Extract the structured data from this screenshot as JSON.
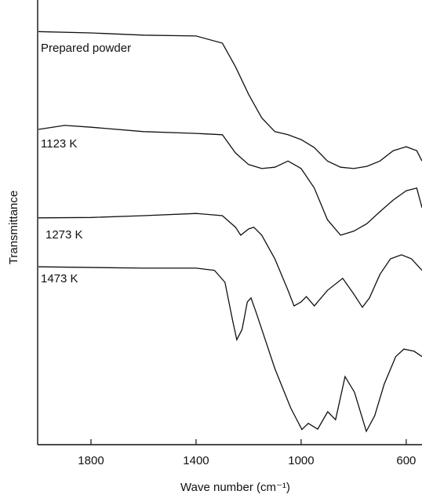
{
  "chart_data": {
    "type": "line",
    "xlabel": "Wave number (cm⁻¹)",
    "ylabel": "Transmittance",
    "xlim": [
      2000,
      540
    ],
    "xticks": [
      1800,
      1400,
      1000,
      600
    ],
    "ylim": [
      0,
      100
    ],
    "series": [
      {
        "name": "Prepared powder",
        "color": "#111111",
        "x": [
          2000,
          1800,
          1600,
          1400,
          1300,
          1250,
          1200,
          1150,
          1100,
          1050,
          1000,
          950,
          900,
          850,
          800,
          750,
          700,
          650,
          600,
          560,
          540
        ],
        "values": [
          92.9,
          92.6,
          92.1,
          91.9,
          90.3,
          85.0,
          78.8,
          73.5,
          70.4,
          69.7,
          68.6,
          66.8,
          63.8,
          62.4,
          62.1,
          62.6,
          63.8,
          66.1,
          67.0,
          66.1,
          63.8
        ]
      },
      {
        "name": "1123 K",
        "color": "#111111",
        "x": [
          2000,
          1900,
          1800,
          1600,
          1400,
          1300,
          1250,
          1200,
          1150,
          1100,
          1050,
          1000,
          950,
          900,
          850,
          800,
          750,
          700,
          650,
          600,
          560,
          540
        ],
        "values": [
          70.9,
          71.8,
          71.4,
          70.4,
          70.0,
          69.7,
          65.6,
          63.0,
          62.1,
          62.4,
          63.8,
          62.1,
          57.7,
          50.6,
          47.1,
          48.0,
          49.7,
          52.4,
          55.0,
          57.1,
          57.7,
          53.3
        ]
      },
      {
        "name": "1273 K",
        "color": "#111111",
        "x": [
          2000,
          1800,
          1600,
          1400,
          1300,
          1250,
          1230,
          1200,
          1180,
          1150,
          1100,
          1050,
          1027,
          1000,
          980,
          950,
          900,
          842,
          800,
          767,
          740,
          700,
          660,
          618,
          580,
          540
        ],
        "values": [
          51.0,
          51.1,
          51.5,
          52.0,
          51.5,
          48.9,
          47.1,
          48.5,
          48.9,
          47.1,
          41.8,
          34.7,
          31.2,
          32.1,
          33.3,
          31.2,
          34.7,
          37.4,
          33.9,
          30.9,
          33.0,
          38.3,
          41.8,
          42.7,
          41.8,
          39.2
        ]
      },
      {
        "name": "1473 K",
        "color": "#111111",
        "x": [
          2000,
          1600,
          1400,
          1330,
          1290,
          1260,
          1245,
          1225,
          1205,
          1191,
          1170,
          1100,
          1040,
          997,
          973,
          937,
          899,
          869,
          833,
          797,
          752,
          720,
          684,
          640,
          609,
          570,
          540
        ],
        "values": [
          40.0,
          39.7,
          39.7,
          39.2,
          36.5,
          27.7,
          23.6,
          25.9,
          32.1,
          33.0,
          29.5,
          17.1,
          8.3,
          3.4,
          4.8,
          3.5,
          7.4,
          5.6,
          15.3,
          11.8,
          3.0,
          6.5,
          13.6,
          19.8,
          21.5,
          21.0,
          19.8
        ]
      }
    ]
  }
}
